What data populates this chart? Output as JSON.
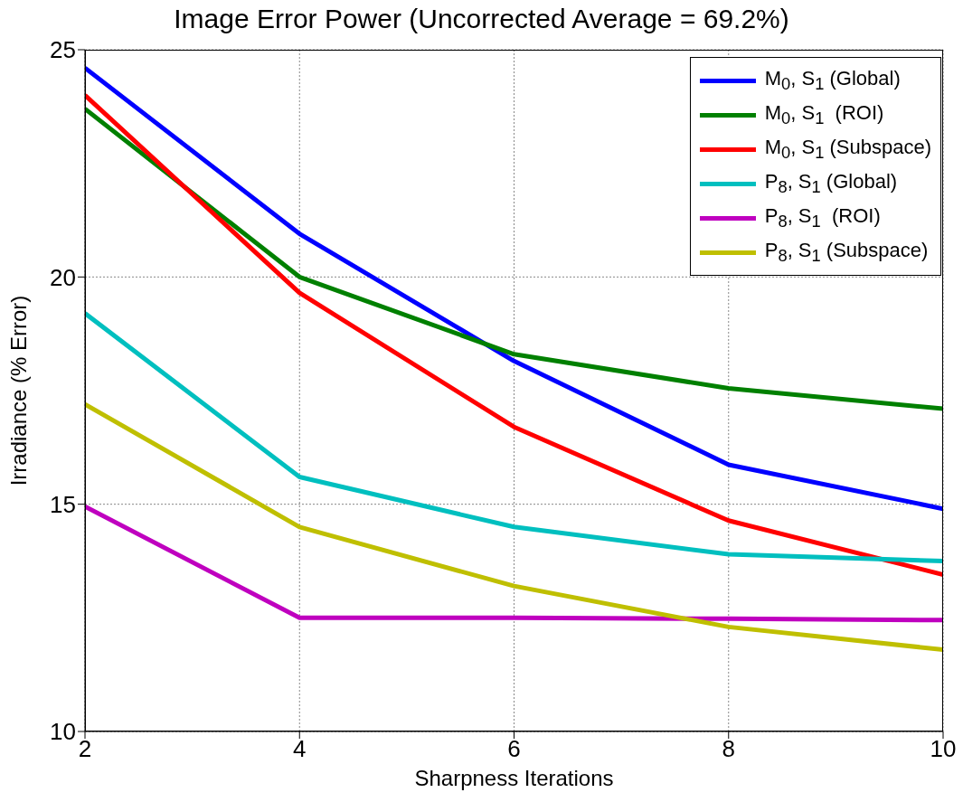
{
  "chart_data": {
    "type": "line",
    "title": "Image Error Power (Uncorrected Average = 69.2%)",
    "xlabel": "Sharpness Iterations",
    "ylabel": "Irradiance (% Error)",
    "x": [
      2,
      4,
      6,
      8,
      10
    ],
    "xlim": [
      2,
      10
    ],
    "xticks": [
      2,
      4,
      6,
      8,
      10
    ],
    "ylim": [
      10,
      25
    ],
    "yticks": [
      10,
      15,
      20,
      25
    ],
    "grid": true,
    "legend": "top right",
    "marker": "none",
    "line_style": "solid",
    "series": [
      {
        "name": "M$_{0}$, S$_{1}$ (Global)",
        "color": "#0000ff",
        "values": [
          24.6,
          20.95,
          18.15,
          15.87,
          14.9
        ]
      },
      {
        "name": "M$_{0}$, S$_{1}$  (ROI)",
        "color": "#008000",
        "values": [
          23.7,
          20.0,
          18.3,
          17.55,
          17.1
        ]
      },
      {
        "name": "M$_{0}$, S$_{1}$ (Subspace)",
        "color": "#ff0000",
        "values": [
          24.0,
          19.65,
          16.7,
          14.64,
          13.45
        ]
      },
      {
        "name": "P$_{8}$, S$_{1}$ (Global)",
        "color": "#00bfbf",
        "values": [
          19.2,
          15.6,
          14.5,
          13.9,
          13.75
        ]
      },
      {
        "name": "P$_{8}$, S$_{1}$  (ROI)",
        "color": "#bf00bf",
        "values": [
          14.95,
          12.5,
          12.5,
          12.48,
          12.45
        ]
      },
      {
        "name": "P$_{8}$, S$_{1}$ (Subspace)",
        "color": "#bfbf00",
        "values": [
          17.2,
          14.5,
          13.2,
          12.3,
          11.8
        ]
      }
    ]
  }
}
